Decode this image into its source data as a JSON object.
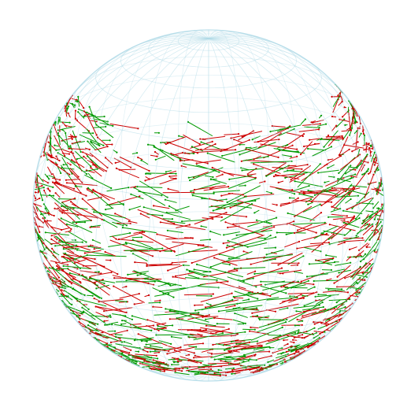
{
  "figure": {
    "type": "sphere-vector-field",
    "grid_color": "#add8e6",
    "grid_opacity": 0.55,
    "meridian_count": 36,
    "parallel_count": 18,
    "view_tilt_degrees": 18,
    "colors": {
      "primary_vectors": "#cc0000",
      "secondary_vectors": "#009900"
    },
    "segment_count": 1400,
    "visible_band_latitude_range_degrees": [
      -58,
      42
    ],
    "has_title": false,
    "has_legend": false,
    "has_axes": false
  }
}
